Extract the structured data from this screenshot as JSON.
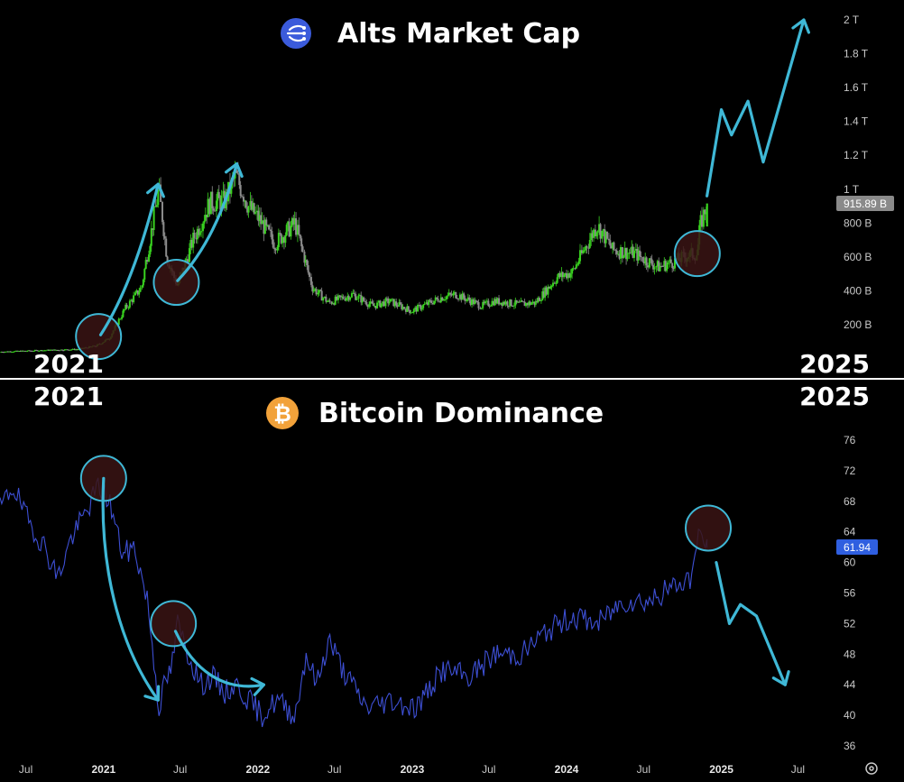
{
  "colors": {
    "background": "#000000",
    "candle_up": "#39d31f",
    "candle_down": "#8c8c8c",
    "dominance_line": "#3d4fd4",
    "annotation": "#3fb8d6",
    "circle_fill": "#3a1414",
    "divider": "#ffffff",
    "badge_alts": "#8a8a8a",
    "badge_btc": "#2f5fe0",
    "alts_logo": "#3b5bdb",
    "btc_logo": "#f2a23a"
  },
  "chart_data": [
    {
      "type": "candlestick",
      "title": "Alts Market Cap",
      "title_icon": "alts-logo-icon",
      "corner_labels": {
        "left": "2021",
        "right": "2025"
      },
      "y_axis": {
        "ticks": [
          "2 T",
          "1.8 T",
          "1.6 T",
          "1.4 T",
          "1.2 T",
          "1 T",
          "800 B",
          "600 B",
          "400 B",
          "200 B"
        ],
        "tick_values": [
          2000,
          1800,
          1600,
          1400,
          1200,
          1000,
          800,
          600,
          400,
          200
        ],
        "unit": "billion USD",
        "ylim": [
          0,
          2080
        ]
      },
      "current_value_label": "915.89 B",
      "current_value": 915.89,
      "x_range": [
        "2020-05-01",
        "2025-09-15"
      ],
      "series_key_dates": [
        "2020-05-01",
        "2020-08-01",
        "2020-11-01",
        "2020-12-15",
        "2021-01-15",
        "2021-02-20",
        "2021-04-01",
        "2021-05-12",
        "2021-06-01",
        "2021-06-25",
        "2021-08-01",
        "2021-09-10",
        "2021-10-15",
        "2021-11-10",
        "2021-12-10",
        "2022-01-05",
        "2022-02-10",
        "2022-03-30",
        "2022-05-10",
        "2022-06-18",
        "2022-08-14",
        "2022-09-30",
        "2022-11-08",
        "2022-12-31",
        "2023-03-10",
        "2023-04-15",
        "2023-06-15",
        "2023-07-15",
        "2023-09-10",
        "2023-10-20",
        "2023-12-10",
        "2024-01-15",
        "2024-03-14",
        "2024-04-20",
        "2024-06-10",
        "2024-08-05",
        "2024-09-10",
        "2024-10-15",
        "2024-11-05",
        "2024-11-12",
        "2024-11-28"
      ],
      "series_key_values": [
        40,
        48,
        55,
        75,
        120,
        290,
        420,
        1000,
        590,
        430,
        700,
        920,
        930,
        1080,
        900,
        820,
        680,
        800,
        420,
        330,
        380,
        310,
        340,
        280,
        360,
        380,
        310,
        340,
        320,
        330,
        480,
        510,
        790,
        640,
        620,
        540,
        570,
        610,
        620,
        780,
        915.89
      ],
      "annotations": [
        {
          "kind": "circle",
          "date": "2020-12-20",
          "value": 130
        },
        {
          "kind": "circle",
          "date": "2021-06-22",
          "value": 450
        },
        {
          "kind": "circle",
          "date": "2024-11-05",
          "value": 620
        },
        {
          "kind": "arrow_path",
          "points": [
            [
              "2020-12-25",
              140
            ],
            [
              "2021-03-15",
              450
            ],
            [
              "2021-05-10",
              1030
            ]
          ]
        },
        {
          "kind": "arrow_path",
          "points": [
            [
              "2021-06-25",
              460
            ],
            [
              "2021-09-25",
              700
            ],
            [
              "2021-11-12",
              1150
            ]
          ]
        },
        {
          "kind": "projection",
          "points": [
            [
              "2024-11-28",
              960
            ],
            [
              "2025-01-01",
              1470
            ],
            [
              "2025-01-25",
              1320
            ],
            [
              "2025-03-05",
              1520
            ],
            [
              "2025-04-10",
              1160
            ],
            [
              "2025-07-15",
              2000
            ]
          ]
        }
      ],
      "x_axis": null
    },
    {
      "type": "line",
      "title": "Bitcoin Dominance",
      "title_icon": "bitcoin-logo-icon",
      "corner_labels": {
        "left": "2021",
        "right": "2025"
      },
      "y_axis": {
        "ticks": [
          "76",
          "72",
          "68",
          "64",
          "60",
          "56",
          "52",
          "48",
          "44",
          "40",
          "36"
        ],
        "tick_values": [
          76,
          72,
          68,
          64,
          60,
          56,
          52,
          48,
          44,
          40,
          36
        ],
        "ylim": [
          34,
          78
        ]
      },
      "current_value_label": "61.94",
      "current_value": 61.94,
      "x_axis": {
        "ticks": [
          "Jul",
          "2021",
          "Jul",
          "2022",
          "Jul",
          "2023",
          "Jul",
          "2024",
          "Jul",
          "2025",
          "Jul"
        ],
        "tick_dates": [
          "2020-07-01",
          "2021-01-01",
          "2021-07-01",
          "2022-01-01",
          "2022-07-01",
          "2023-01-01",
          "2023-07-01",
          "2024-01-01",
          "2024-07-01",
          "2025-01-01",
          "2025-07-01"
        ],
        "bold_ticks": [
          "2021",
          "2022",
          "2023",
          "2024",
          "2025"
        ]
      },
      "x_range": [
        "2020-05-01",
        "2025-09-15"
      ],
      "series_key_dates": [
        "2020-05-01",
        "2020-06-01",
        "2020-07-01",
        "2020-08-15",
        "2020-09-15",
        "2020-10-15",
        "2020-11-15",
        "2020-12-20",
        "2021-01-15",
        "2021-02-15",
        "2021-03-15",
        "2021-04-15",
        "2021-05-12",
        "2021-05-25",
        "2021-06-10",
        "2021-06-25",
        "2021-07-20",
        "2021-08-20",
        "2021-09-15",
        "2021-10-15",
        "2021-11-10",
        "2021-12-10",
        "2022-01-10",
        "2022-02-15",
        "2022-03-30",
        "2022-04-25",
        "2022-05-20",
        "2022-06-18",
        "2022-07-20",
        "2022-09-15",
        "2022-11-10",
        "2023-01-10",
        "2023-03-15",
        "2023-05-15",
        "2023-07-15",
        "2023-09-15",
        "2023-11-15",
        "2024-01-15",
        "2024-03-15",
        "2024-05-15",
        "2024-07-15",
        "2024-09-15",
        "2024-10-20",
        "2024-11-12",
        "2024-11-28"
      ],
      "series_key_values": [
        67,
        70,
        66,
        62,
        58,
        63,
        66,
        70,
        68,
        61,
        62,
        55,
        41,
        44,
        46,
        52,
        48,
        44,
        45,
        43,
        44,
        42,
        40,
        42,
        40,
        48,
        44,
        50,
        46,
        41,
        42,
        41,
        46,
        45,
        48,
        48,
        51,
        53,
        52,
        55,
        55,
        57,
        58,
        64,
        61.94
      ],
      "annotations": [
        {
          "kind": "circle",
          "date": "2021-01-01",
          "value": 71
        },
        {
          "kind": "circle",
          "date": "2021-06-15",
          "value": 52
        },
        {
          "kind": "circle",
          "date": "2024-12-01",
          "value": 64.5
        },
        {
          "kind": "arrow_path",
          "points": [
            [
              "2021-01-01",
              71
            ],
            [
              "2020-12-20",
              58
            ],
            [
              "2021-02-20",
              48
            ],
            [
              "2021-05-10",
              42
            ]
          ]
        },
        {
          "kind": "arrow_path",
          "points": [
            [
              "2021-06-20",
              51
            ],
            [
              "2021-08-01",
              46
            ],
            [
              "2021-10-10",
              43
            ],
            [
              "2022-01-15",
              44
            ]
          ]
        },
        {
          "kind": "projection",
          "points": [
            [
              "2024-12-20",
              60
            ],
            [
              "2025-01-20",
              52
            ],
            [
              "2025-02-15",
              54.5
            ],
            [
              "2025-03-25",
              53
            ],
            [
              "2025-06-01",
              44
            ]
          ]
        }
      ]
    }
  ]
}
